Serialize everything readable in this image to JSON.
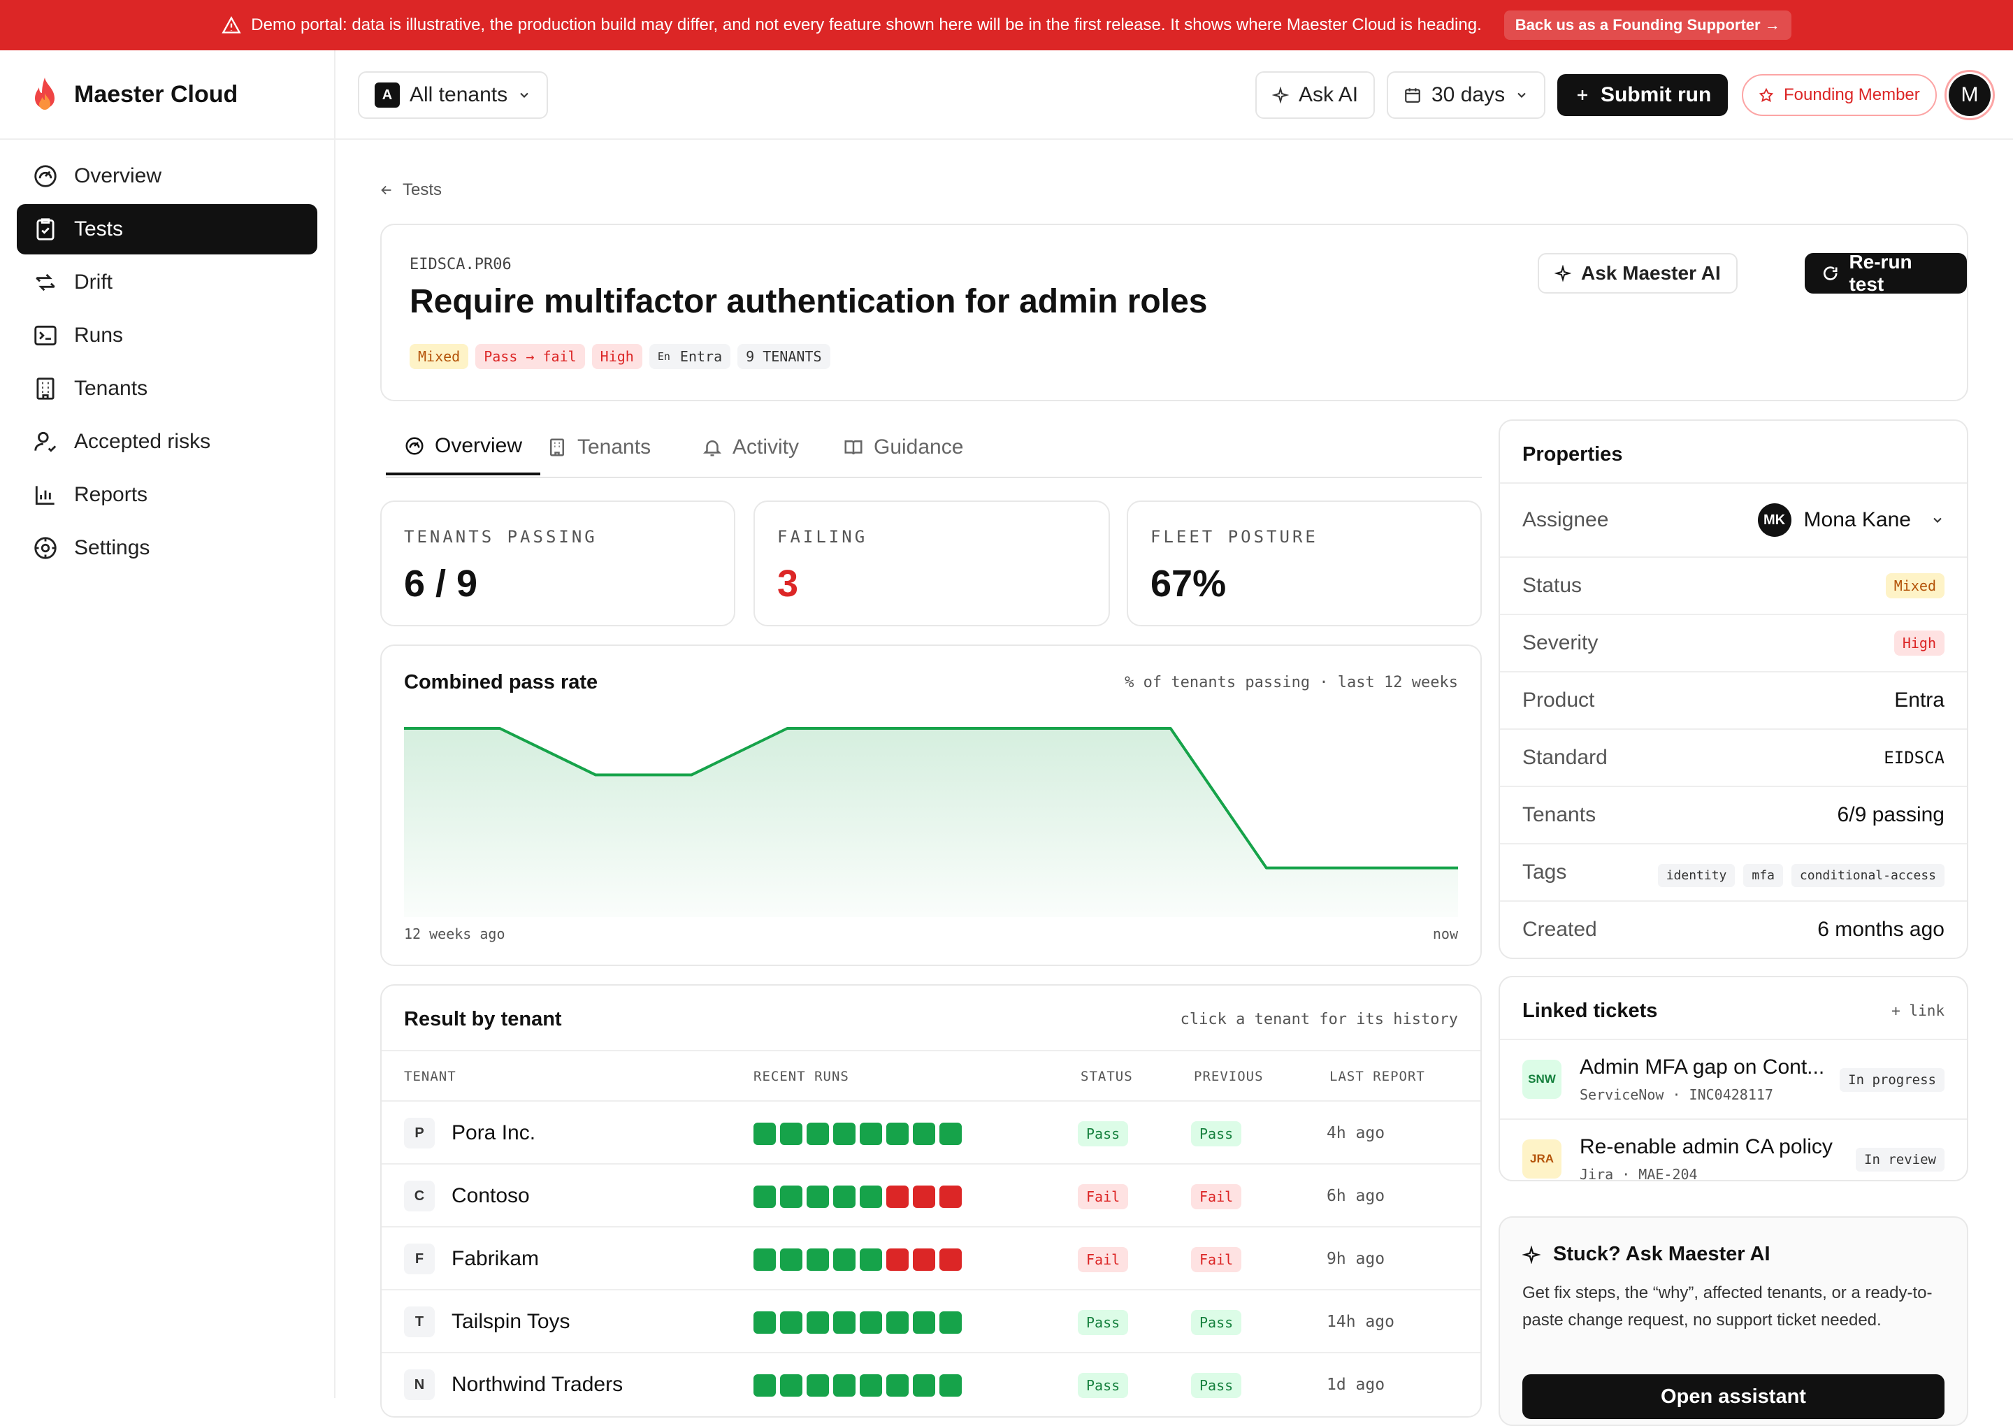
{
  "banner": {
    "text": "Demo portal: data is illustrative, the production build may differ, and not every feature shown here will be in the first release. It shows where Maester Cloud is heading.",
    "cta": "Back us as a Founding Supporter →",
    "color": "#dc2626"
  },
  "brand": {
    "name": "Maester Cloud",
    "logo_icon": "flame-icon"
  },
  "sidebar": {
    "items": [
      {
        "label": "Overview",
        "icon": "gauge-icon"
      },
      {
        "label": "Tests",
        "icon": "clipboard-check-icon",
        "active": true
      },
      {
        "label": "Drift",
        "icon": "arrows-icon"
      },
      {
        "label": "Runs",
        "icon": "terminal-icon"
      },
      {
        "label": "Tenants",
        "icon": "building-icon"
      },
      {
        "label": "Accepted risks",
        "icon": "user-check-icon"
      },
      {
        "label": "Reports",
        "icon": "bar-chart-icon"
      },
      {
        "label": "Settings",
        "icon": "settings-icon"
      }
    ]
  },
  "topbar": {
    "tenant_badge": "A",
    "tenant_label": "All tenants",
    "ask_ai": "Ask AI",
    "range": "30 days",
    "submit": "Submit run",
    "founding": "Founding Member",
    "avatar": "M"
  },
  "breadcrumb": {
    "back": "Tests"
  },
  "test": {
    "code": "EIDSCA.PR06",
    "title": "Require multifactor authentication for admin roles",
    "badges": {
      "mixed": "Mixed",
      "transition": "Pass → fail",
      "severity": "High",
      "product_abbr": "En",
      "product": "Entra",
      "tenants": "9 TENANTS"
    },
    "ask": "Ask Maester AI",
    "rerun": "Re-run test"
  },
  "tabs": [
    {
      "label": "Overview",
      "icon": "gauge-icon",
      "active": true
    },
    {
      "label": "Tenants",
      "icon": "building-icon"
    },
    {
      "label": "Activity",
      "icon": "bell-icon"
    },
    {
      "label": "Guidance",
      "icon": "book-icon"
    }
  ],
  "stats": [
    {
      "label": "TENANTS PASSING",
      "value": "6 / 9"
    },
    {
      "label": "FAILING",
      "value": "3",
      "color": "#dc2626"
    },
    {
      "label": "FLEET POSTURE",
      "value": "67%"
    }
  ],
  "chart_data": {
    "type": "area",
    "title": "Combined pass rate",
    "subtitle": "% of tenants passing · last 12 weeks",
    "x_start_label": "12 weeks ago",
    "x_end_label": "now",
    "values": [
      100,
      100,
      89,
      89,
      100,
      100,
      100,
      100,
      100,
      67,
      67,
      67
    ],
    "ylim": [
      60,
      100
    ],
    "color": "#16a34a"
  },
  "results": {
    "title": "Result by tenant",
    "hint": "click a tenant for its history",
    "headers": [
      "TENANT",
      "RECENT RUNS",
      "STATUS",
      "PREVIOUS",
      "LAST REPORT"
    ],
    "rows": [
      {
        "initial": "P",
        "name": "Pora Inc.",
        "runs": [
          "pass",
          "pass",
          "pass",
          "pass",
          "pass",
          "pass",
          "pass",
          "pass"
        ],
        "status": "Pass",
        "previous": "Pass",
        "last": "4h ago"
      },
      {
        "initial": "C",
        "name": "Contoso",
        "runs": [
          "pass",
          "pass",
          "pass",
          "pass",
          "pass",
          "fail",
          "fail",
          "fail"
        ],
        "status": "Fail",
        "previous": "Fail",
        "last": "6h ago"
      },
      {
        "initial": "F",
        "name": "Fabrikam",
        "runs": [
          "pass",
          "pass",
          "pass",
          "pass",
          "pass",
          "fail",
          "fail",
          "fail"
        ],
        "status": "Fail",
        "previous": "Fail",
        "last": "9h ago"
      },
      {
        "initial": "T",
        "name": "Tailspin Toys",
        "runs": [
          "pass",
          "pass",
          "pass",
          "pass",
          "pass",
          "pass",
          "pass",
          "pass"
        ],
        "status": "Pass",
        "previous": "Pass",
        "last": "14h ago"
      },
      {
        "initial": "N",
        "name": "Northwind Traders",
        "runs": [
          "pass",
          "pass",
          "pass",
          "pass",
          "pass",
          "pass",
          "pass",
          "pass"
        ],
        "status": "Pass",
        "previous": "Pass",
        "last": "1d ago"
      }
    ]
  },
  "properties": {
    "title": "Properties",
    "assignee_label": "Assignee",
    "assignee_initials": "MK",
    "assignee": "Mona Kane",
    "status_label": "Status",
    "status": "Mixed",
    "severity_label": "Severity",
    "severity": "High",
    "product_label": "Product",
    "product": "Entra",
    "standard_label": "Standard",
    "standard": "EIDSCA",
    "tenants_label": "Tenants",
    "tenants": "6/9 passing",
    "tags_label": "Tags",
    "tags": [
      "identity",
      "mfa",
      "conditional-access"
    ],
    "created_label": "Created",
    "created": "6 months ago"
  },
  "tickets": {
    "title": "Linked tickets",
    "link": "+ link",
    "items": [
      {
        "badge": "SNW",
        "title": "Admin MFA gap on Cont...",
        "source": "ServiceNow · INC0428117",
        "status": "In progress"
      },
      {
        "badge": "JRA",
        "title": "Re-enable admin CA policy",
        "source": "Jira · MAE-204",
        "status": "In review"
      }
    ]
  },
  "assistant": {
    "title": "Stuck? Ask Maester AI",
    "body": "Get fix steps, the “why”, affected tenants, or a ready-to-paste change request, no support ticket needed.",
    "button": "Open assistant"
  }
}
